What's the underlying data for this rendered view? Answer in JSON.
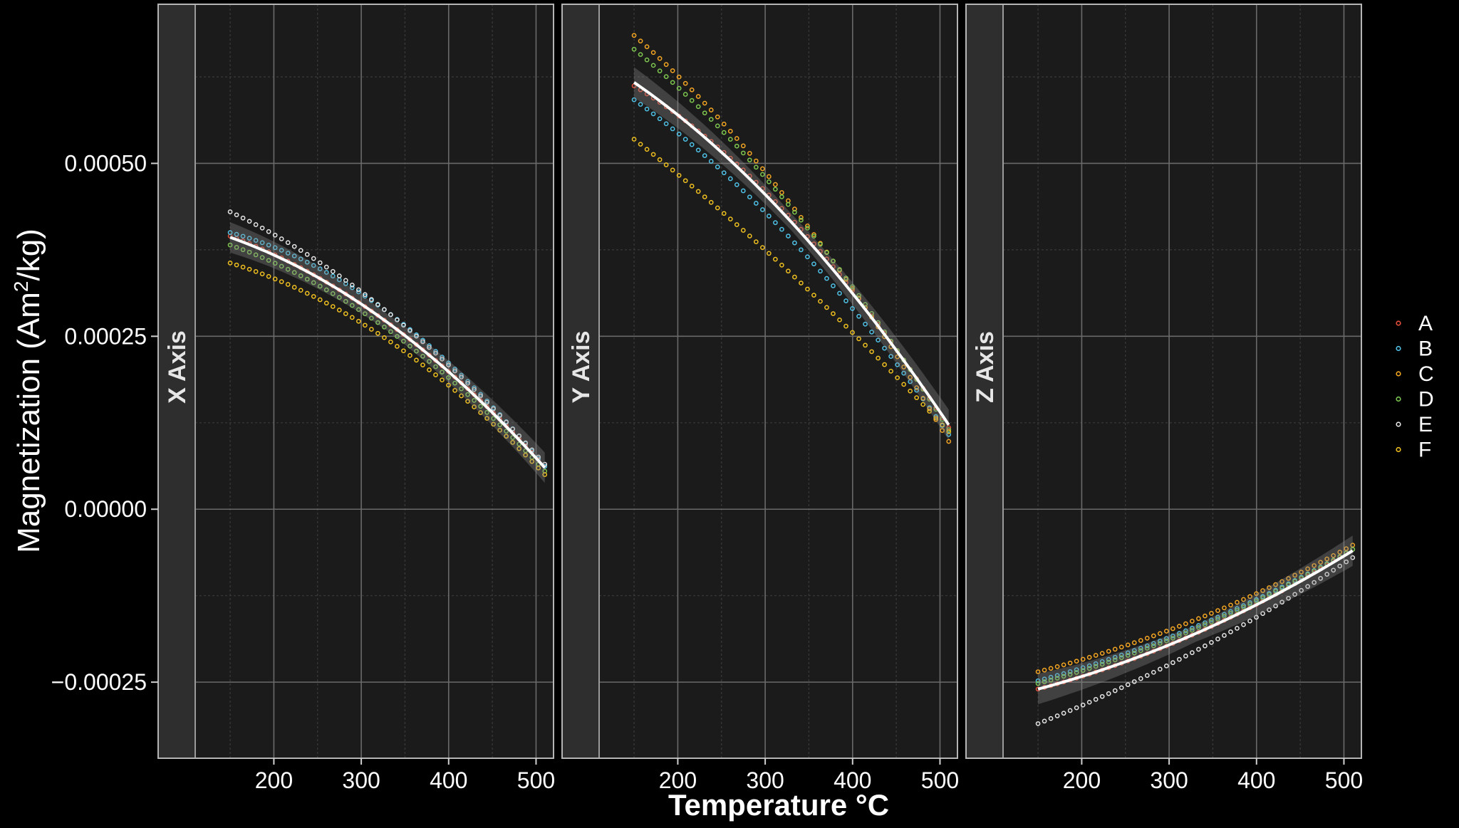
{
  "chart_data": {
    "type": "scatter",
    "xlabel": "Temperature °C",
    "ylabel_main": "Magnetization (Am",
    "ylabel_sup": "2",
    "ylabel_tail": "/kg)",
    "xlim": [
      110,
      520
    ],
    "ylim": [
      -0.00036,
      0.00073
    ],
    "x_ticks": [
      200,
      300,
      400,
      500
    ],
    "x_tick_labels": [
      "200",
      "300",
      "400",
      "500"
    ],
    "y_ticks": [
      -0.00025,
      0.0,
      0.00025,
      0.0005
    ],
    "y_tick_labels": [
      "−0.00025",
      "0.00000",
      "0.00025",
      "0.00050"
    ],
    "x_start": 150,
    "x_end": 510,
    "points_per_series": 50,
    "grid": true,
    "legend_position": "right",
    "legend": [
      {
        "key": "A",
        "color": "#e8503a"
      },
      {
        "key": "B",
        "color": "#4fc3e8"
      },
      {
        "key": "C",
        "color": "#f5a623"
      },
      {
        "key": "D",
        "color": "#7ec850"
      },
      {
        "key": "E",
        "color": "#e6e6e6"
      },
      {
        "key": "F",
        "color": "#f0c020"
      }
    ],
    "panels": [
      {
        "strip": "X Axis",
        "series": [
          {
            "key": "A",
            "start": 0.000395,
            "mid": 0.00027,
            "end": 6.2e-05
          },
          {
            "key": "B",
            "start": 0.0004,
            "mid": 0.000285,
            "end": 6.2e-05
          },
          {
            "key": "D",
            "start": 0.000382,
            "mid": 0.00026,
            "end": 5.5e-05
          },
          {
            "key": "E",
            "start": 0.00043,
            "mid": 0.000285,
            "end": 6.5e-05
          },
          {
            "key": "F",
            "start": 0.000356,
            "mid": 0.000245,
            "end": 5e-05
          }
        ],
        "trend": {
          "start": 0.000393,
          "mid": 0.00027,
          "end": 6e-05
        }
      },
      {
        "strip": "Y Axis",
        "series": [
          {
            "key": "A",
            "start": 0.000612,
            "mid": 0.00042,
            "end": 0.000118
          },
          {
            "key": "B",
            "start": 0.000592,
            "mid": 0.00039,
            "end": 0.000108
          },
          {
            "key": "C",
            "start": 0.000685,
            "mid": 0.00044,
            "end": 9.8e-05
          },
          {
            "key": "D",
            "start": 0.000665,
            "mid": 0.000435,
            "end": 0.000115
          },
          {
            "key": "F",
            "start": 0.000535,
            "mid": 0.00034,
            "end": 0.000112
          }
        ],
        "trend": {
          "start": 0.000617,
          "mid": 0.000415,
          "end": 0.000122
        }
      },
      {
        "strip": "Z Axis",
        "series": [
          {
            "key": "A",
            "start": -0.00026,
            "mid": -0.00018,
            "end": -5.8e-05
          },
          {
            "key": "B",
            "start": -0.000248,
            "mid": -0.00017,
            "end": -5.8e-05
          },
          {
            "key": "C",
            "start": -0.000235,
            "mid": -0.00016,
            "end": -5.2e-05
          },
          {
            "key": "D",
            "start": -0.000252,
            "mid": -0.000173,
            "end": -5.8e-05
          },
          {
            "key": "E",
            "start": -0.00031,
            "mid": -0.000205,
            "end": -7e-05
          }
        ],
        "trend": {
          "start": -0.00026,
          "mid": -0.00018,
          "end": -6e-05
        }
      }
    ]
  }
}
